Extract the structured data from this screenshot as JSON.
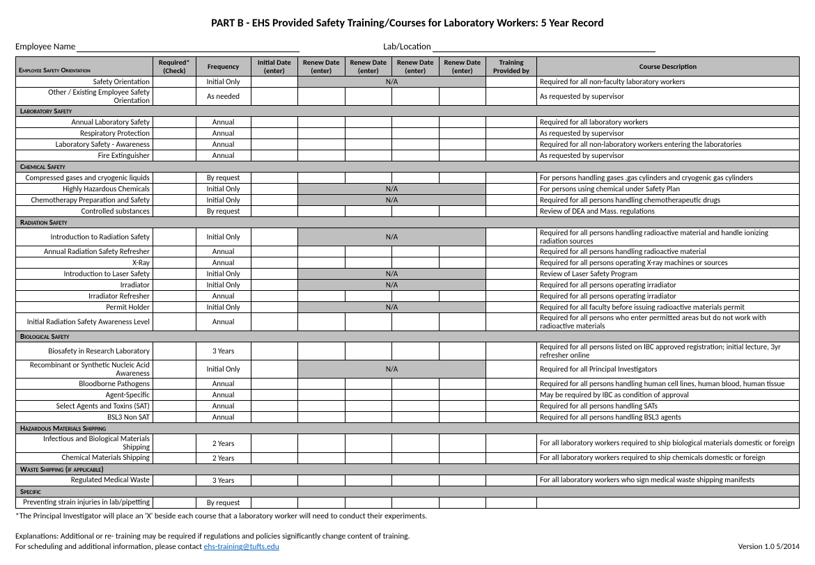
{
  "title": "PART B - EHS Provided Safety Training/Courses for Laboratory Workers: 5 Year Record",
  "fields": {
    "employee": "Employee Name",
    "lab": "Lab/Location"
  },
  "columns": [
    "Employee Safety Orientation",
    "Required* (Check)",
    "Frequency",
    "Initial Date (enter)",
    "Renew Date (enter)",
    "Renew Date (enter)",
    "Renew Date (enter)",
    "Renew Date (enter)",
    "Training Provided by",
    "Course Description"
  ],
  "col_widths_pct": [
    17.5,
    5.5,
    7,
    6,
    6,
    6,
    6,
    6,
    6.5,
    33.5
  ],
  "sections": [
    {
      "rows": [
        {
          "course": "Safety Orientation",
          "freq": "Initial Only",
          "na": [
            4,
            5,
            6,
            7
          ],
          "na_label": "N/A",
          "desc": "Required for all non-faculty laboratory workers"
        },
        {
          "course": "Other / Existing Employee Safety Orientation",
          "freq": "As needed",
          "desc": "As requested by supervisor"
        }
      ]
    },
    {
      "header": "Laboratory Safety",
      "rows": [
        {
          "course": "Annual Laboratory Safety",
          "freq": "Annual",
          "desc": "Required for all laboratory workers"
        },
        {
          "course": "Respiratory Protection",
          "freq": "Annual",
          "desc": "As requested by supervisor"
        },
        {
          "course": "Laboratory Safety - Awareness",
          "freq": "Annual",
          "desc": "Required for all non-laboratory workers entering the laboratories"
        },
        {
          "course": "Fire Extinguisher",
          "freq": "Annual",
          "desc": "As requested by supervisor"
        }
      ]
    },
    {
      "header": "Chemical Safety",
      "rows": [
        {
          "course": "Compressed gases and cryogenic liquids",
          "freq": "By request",
          "desc": "For persons handling gases ,gas cylinders and cryogenic gas cylinders"
        },
        {
          "course": "Highly  Hazardous Chemicals",
          "freq": "Initial Only",
          "na": [
            4,
            5,
            6,
            7
          ],
          "na_label": "N/A",
          "desc": "For persons using chemical under Safety Plan"
        },
        {
          "course": "Chemotherapy Preparation and Safety",
          "freq": "Initial Only",
          "na": [
            4,
            5,
            6,
            7
          ],
          "na_label": "N/A",
          "desc": "Required for all persons handling chemotherapeutic drugs"
        },
        {
          "course": "Controlled substances",
          "freq": "By request",
          "desc": "Review of DEA and Mass. regulations"
        }
      ]
    },
    {
      "header": "Radiation Safety",
      "rows": [
        {
          "course": "Introduction to Radiation Safety",
          "freq": "Initial Only",
          "na": [
            4,
            5,
            6,
            7
          ],
          "na_label": "N/A",
          "desc": "Required for all persons handling radioactive material and handle ionizing radiation sources"
        },
        {
          "course": "Annual Radiation Safety Refresher",
          "freq": "Annual",
          "desc": "Required for all persons handling radioactive material"
        },
        {
          "course": "X-Ray",
          "freq": "Annual",
          "desc": "Required for all persons operating X-ray machines or sources"
        },
        {
          "course": "Introduction to Laser Safety",
          "freq": "Initial Only",
          "na": [
            4,
            5,
            6,
            7
          ],
          "na_label": "N/A",
          "desc": "Review of Laser Safety Program"
        },
        {
          "course": "Irradiator",
          "freq": "Initial Only",
          "na": [
            4,
            5,
            6,
            7
          ],
          "na_label": "N/A",
          "desc": "Required for all persons operating irradiator"
        },
        {
          "course": "Irradiator Refresher",
          "freq": "Annual",
          "desc": "Required for all persons operating irradiator"
        },
        {
          "course": "Permit Holder",
          "freq": "Initial Only",
          "na": [
            4,
            5,
            6,
            7
          ],
          "na_label": "N/A",
          "desc": "Required for all faculty before issuing radioactive materials permit"
        },
        {
          "course": "Initial Radiation Safety Awareness Level",
          "freq": "Annual",
          "desc": "Required for all persons who enter permitted areas but do not work with radioactive materials",
          "wrap": true
        }
      ]
    },
    {
      "header": "Biological Safety",
      "rows": [
        {
          "course": "Biosafety in Research Laboratory",
          "freq": "3 Years",
          "desc": "Required for all persons listed on IBC approved registration; initial lecture, 3yr refresher online",
          "wrap": true
        },
        {
          "course": "Recombinant or Synthetic Nucleic Acid Awareness",
          "course_wrap": true,
          "freq": "Initial Only",
          "na": [
            4,
            5,
            6,
            7
          ],
          "na_label": "N/A",
          "desc": "Required for all Principal Investigators"
        },
        {
          "course": "Bloodborne Pathogens",
          "freq": "Annual",
          "desc": "Required for all persons handling human cell lines, human blood, human tissue"
        },
        {
          "course": "Agent-Specific",
          "freq": "Annual",
          "desc": "May be required by IBC as condition of approval"
        },
        {
          "course": "Select Agents and Toxins (SAT)",
          "freq": "Annual",
          "desc": "Required for all persons handling SATs"
        },
        {
          "course": "BSL3 Non SAT",
          "freq": "Annual",
          "desc": "Required for all persons handling BSL3 agents"
        }
      ]
    },
    {
      "header": "Hazardous Materials Shipping",
      "rows": [
        {
          "course": "Infectious and Biological Materials Shipping",
          "freq": "2 Years",
          "desc": "For all laboratory workers required to ship biological materials domestic or foreign"
        },
        {
          "course": "Chemical Materials Shipping",
          "freq": "2 Years",
          "desc": "For all laboratory workers required  to ship chemicals domestic or foreign"
        }
      ]
    },
    {
      "header": "Waste Shipping (if applicable)",
      "rows": [
        {
          "course": "Regulated Medical Waste",
          "freq": "3 Years",
          "desc": "For all laboratory workers who sign medical waste shipping manifests"
        }
      ]
    },
    {
      "header": "Specific",
      "rows": [
        {
          "course": "Preventing strain injuries in lab/pipetting",
          "freq": "By request",
          "desc": ""
        }
      ]
    }
  ],
  "footnotes": [
    "*The Principal Investigator will place an 'X' beside each course that a laboratory worker will need to conduct their experiments.",
    "",
    "Explanations:  Additional or re- training may be required if regulations and policies significantly change content of training."
  ],
  "contact_text": "For scheduling and additional information, please contact ",
  "contact_email": "ehs-training@tufts.edu",
  "version": "Version 1.0  5/2014",
  "colors": {
    "header_bg": "#bfbfbf",
    "border": "#000000",
    "link": "#0563c1"
  }
}
